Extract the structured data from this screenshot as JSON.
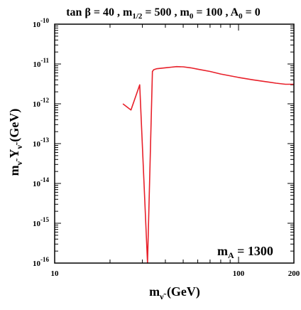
{
  "chart_data": {
    "type": "line",
    "title": "tan β = 40 , m1/2 = 500 , m0 = 100 , A0 = 0",
    "xlabel": "mν̃ (GeV)",
    "ylabel": "mν̃ Yν̃ (GeV)",
    "x_scale": "log",
    "y_scale": "log",
    "xlim": [
      10,
      200
    ],
    "ylim": [
      1e-16,
      1e-10
    ],
    "x_tick_labels": [
      "10",
      "100",
      "200"
    ],
    "x_tick_values": [
      10,
      100,
      200
    ],
    "y_tick_labels": [
      "10-16",
      "10-15",
      "10-14",
      "10-13",
      "10-12",
      "10-11",
      "10-10"
    ],
    "y_tick_values": [
      1e-16,
      1e-15,
      1e-14,
      1e-13,
      1e-12,
      1e-11,
      1e-10
    ],
    "annotation": "mA = 1300",
    "grid": false,
    "series": [
      {
        "color": "#e8202a",
        "x": [
          23.5,
          26,
          29,
          32,
          34,
          34.6,
          35.8,
          41,
          43,
          46,
          50,
          55,
          60,
          70,
          80,
          100,
          120,
          140,
          160,
          180,
          200
        ],
        "y": [
          1e-12,
          7e-13,
          3e-12,
          1e-16,
          6.5e-12,
          7.2e-12,
          7.6e-12,
          8.1e-12,
          8.3e-12,
          8.6e-12,
          8.5e-12,
          8e-12,
          7.4e-12,
          6.5e-12,
          5.6e-12,
          4.6e-12,
          4e-12,
          3.6e-12,
          3.3e-12,
          3.1e-12,
          3.1e-12
        ]
      }
    ]
  }
}
